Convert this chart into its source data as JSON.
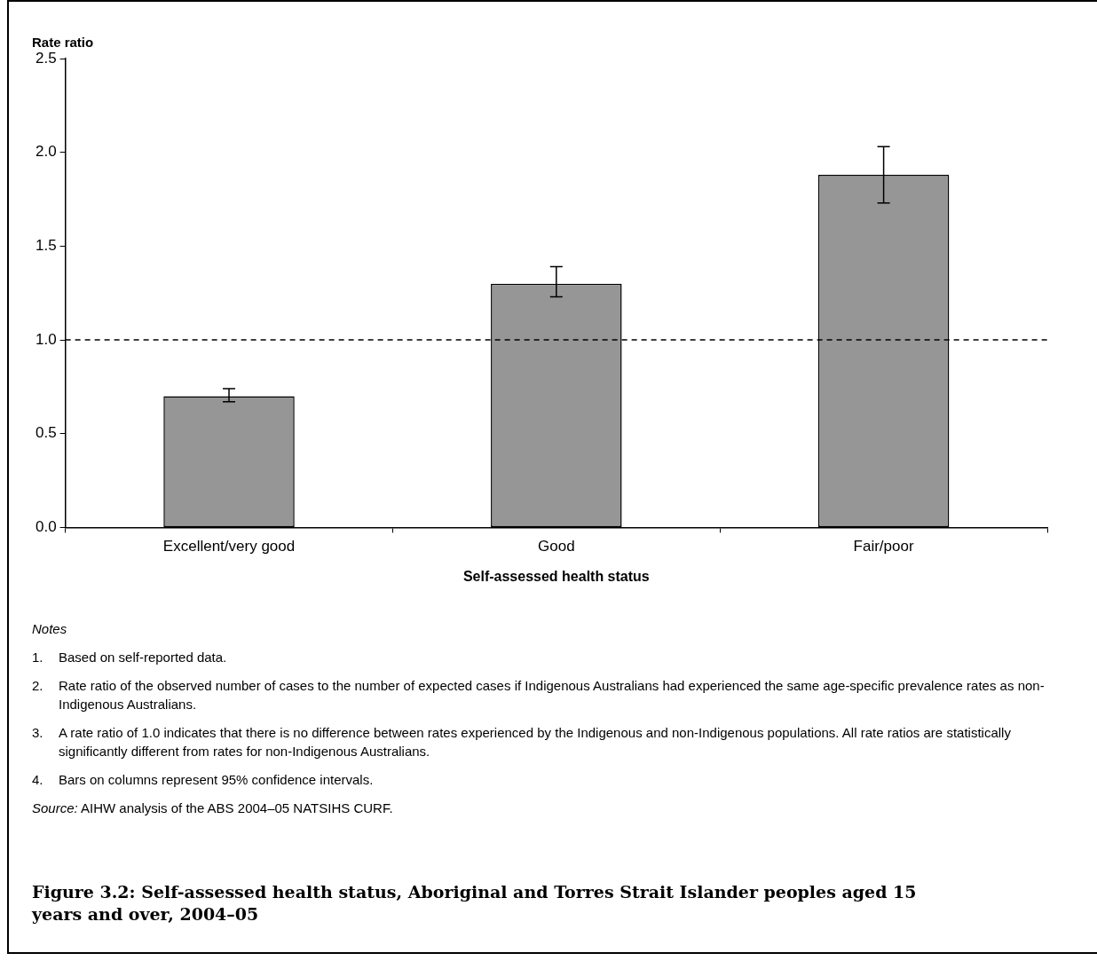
{
  "chart_data": {
    "type": "bar",
    "title": "Figure 3.2: Self-assessed health status, Aboriginal and Torres Strait Islander peoples aged 15 years and over, 2004–05",
    "xlabel": "Self-assessed health status",
    "ylabel": "Rate ratio",
    "categories": [
      "Excellent/very good",
      "Good",
      "Fair/poor"
    ],
    "values": [
      0.7,
      1.3,
      1.88
    ],
    "errors": [
      [
        0.67,
        0.74
      ],
      [
        1.23,
        1.39
      ],
      [
        1.73,
        2.03
      ]
    ],
    "color": "#969696",
    "ylim": [
      0,
      2.5
    ],
    "yticks": [
      {
        "value": 0,
        "label": "0.0"
      },
      {
        "value": 0.5,
        "label": "0.5"
      },
      {
        "value": 1,
        "label": "1.0"
      },
      {
        "value": 1.5,
        "label": "1.5"
      },
      {
        "value": 2,
        "label": "2.0"
      },
      {
        "value": 2.5,
        "label": "2.5"
      }
    ],
    "ref_lines": [
      {
        "axis": "y",
        "value": 1,
        "color": "#000000",
        "line_style": "dashed"
      }
    ],
    "annotations": [
      "Notes",
      "1. Based on self-reported data.",
      "2. Rate ratio of the observed number of cases to the number of expected cases if Indigenous Australians had experienced the same age-specific prevalence rates as non-Indigenous Australians.",
      "3. A rate ratio of 1.0 indicates that there is no difference between rates experienced by the Indigenous and non-Indigenous populations. All rate ratios are statistically significantly different from rates for non-Indigenous Australians.",
      "4. Bars on columns represent 95% confidence intervals.",
      "Source: AIHW analysis of the ABS 2004–05 NATSIHS CURF."
    ]
  }
}
